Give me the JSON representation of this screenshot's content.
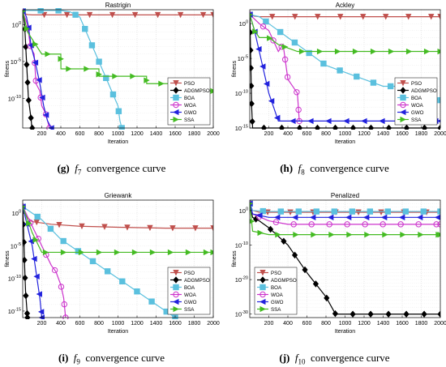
{
  "captions": [
    {
      "label": "(g)",
      "func": "f",
      "sub": "7",
      "text": "convergence curve"
    },
    {
      "label": "(h)",
      "func": "f",
      "sub": "8",
      "text": "convergence curve"
    },
    {
      "label": "(i)",
      "func": "f",
      "sub": "9",
      "text": "convergence curve"
    },
    {
      "label": "(j)",
      "func": "f",
      "sub": "10",
      "text": "convergence curve"
    }
  ],
  "colors": {
    "PSO": "#c0504d",
    "ADGMPSO": "#000000",
    "BOA": "#5bc0de",
    "WOA": "#cc33cc",
    "GWO": "#2222dd",
    "SSA": "#44bb22"
  },
  "chart_data": [
    {
      "type": "line",
      "title": "Rastrigin",
      "xlabel": "Iteration",
      "ylabel": "fitness",
      "yscale": "log",
      "xlim": [
        0,
        2000
      ],
      "ylim": [
        1e-14,
        100
      ],
      "xticks": [
        200,
        400,
        600,
        800,
        1000,
        1200,
        1400,
        1600,
        1800,
        2000
      ],
      "yticks": [
        {
          "v": 1,
          "label": "10^0"
        },
        {
          "v": 1e-05,
          "label": "10^-5"
        },
        {
          "v": 1e-10,
          "label": "10^-10"
        }
      ],
      "grid": true,
      "legend": "bottom-right",
      "series": [
        {
          "name": "PSO",
          "marker": "triangle-down",
          "x": [
            1,
            20,
            50,
            100,
            2000
          ],
          "y": [
            60,
            30,
            22,
            20,
            20
          ]
        },
        {
          "name": "ADGMPSO",
          "marker": "diamond",
          "x": [
            1,
            20,
            40,
            60,
            80,
            90,
            95,
            100
          ],
          "y": [
            60,
            1,
            1e-05,
            1e-10,
            1e-12,
            1e-13,
            1e-14,
            1e-14
          ]
        },
        {
          "name": "BOA",
          "marker": "square",
          "x": [
            1,
            400,
            500,
            600,
            700,
            800,
            900,
            1000,
            1020,
            1040
          ],
          "y": [
            80,
            80,
            50,
            10,
            0.01,
            1e-05,
            1e-08,
            1e-11,
            1e-13,
            1e-14
          ]
        },
        {
          "name": "WOA",
          "marker": "circle",
          "x": [
            1,
            50,
            80,
            120,
            140,
            180,
            200,
            240,
            260,
            280
          ],
          "y": [
            60,
            1,
            0.001,
            0.0001,
            1e-08,
            1e-09,
            1e-11,
            1e-12,
            1e-13,
            1e-14
          ]
        },
        {
          "name": "GWO",
          "marker": "triangle-left",
          "x": [
            1,
            20,
            40,
            60,
            90,
            130,
            180,
            220,
            260,
            300
          ],
          "y": [
            60,
            40,
            10,
            0.5,
            0.001,
            1e-05,
            1e-08,
            1e-11,
            1e-13,
            1e-14
          ]
        },
        {
          "name": "SSA",
          "marker": "triangle-right",
          "x": [
            1,
            50,
            100,
            200,
            400,
            401,
            800,
            801,
            1300,
            1301,
            1750,
            1751,
            2000
          ],
          "y": [
            60,
            0.1,
            0.01,
            0.0001,
            0.0001,
            1e-06,
            1e-06,
            1e-07,
            1e-07,
            1e-08,
            1e-08,
            1e-09,
            1e-09
          ]
        }
      ]
    },
    {
      "type": "line",
      "title": "Ackley",
      "xlabel": "Iteration",
      "ylabel": "fitness",
      "yscale": "log",
      "xlim": [
        0,
        2000
      ],
      "ylim": [
        1e-15,
        100
      ],
      "xticks": [
        200,
        400,
        600,
        800,
        1000,
        1200,
        1400,
        1600,
        1800,
        2000
      ],
      "yticks": [
        {
          "v": 1,
          "label": "10^0"
        },
        {
          "v": 1e-05,
          "label": "10^-5"
        },
        {
          "v": 1e-10,
          "label": "10^-10"
        },
        {
          "v": 1e-15,
          "label": "10^-15"
        }
      ],
      "grid": true,
      "legend": "bottom-right",
      "series": [
        {
          "name": "PSO",
          "marker": "triangle-down",
          "x": [
            1,
            20,
            50,
            100,
            2000
          ],
          "y": [
            20,
            15,
            12,
            10,
            10
          ]
        },
        {
          "name": "ADGMPSO",
          "marker": "diamond",
          "x": [
            1,
            10,
            20,
            30,
            2000
          ],
          "y": [
            20,
            1e-05,
            1e-12,
            1e-15,
            1e-15
          ]
        },
        {
          "name": "BOA",
          "marker": "square",
          "x": [
            1,
            100,
            200,
            400,
            600,
            800,
            1000,
            1200,
            1400,
            1600,
            1800,
            2000
          ],
          "y": [
            20,
            10,
            1,
            0.01,
            0.0001,
            1e-06,
            1e-07,
            1e-08,
            1e-09,
            1e-09,
            1e-10,
            1e-11
          ]
        },
        {
          "name": "WOA",
          "marker": "circle",
          "x": [
            1,
            100,
            200,
            300,
            350,
            400,
            450,
            500,
            520
          ],
          "y": [
            20,
            1,
            0.1,
            0.0001,
            0.001,
            1e-08,
            1e-09,
            1e-10,
            1e-14
          ]
        },
        {
          "name": "GWO",
          "marker": "triangle-left",
          "x": [
            1,
            50,
            100,
            150,
            200,
            250,
            300,
            2000
          ],
          "y": [
            20,
            0.1,
            0.0001,
            1e-07,
            1e-10,
            1e-12,
            1e-14,
            1e-14
          ]
        },
        {
          "name": "SSA",
          "marker": "triangle-right",
          "x": [
            1,
            50,
            100,
            200,
            300,
            500,
            2000
          ],
          "y": [
            20,
            0.1,
            0.01,
            0.01,
            0.001,
            0.0001,
            0.0001
          ]
        }
      ]
    },
    {
      "type": "line",
      "title": "Griewank",
      "xlabel": "Iteration",
      "ylabel": "fitness",
      "yscale": "log",
      "xlim": [
        0,
        2000
      ],
      "ylim": [
        1e-16,
        100
      ],
      "xticks": [
        200,
        400,
        600,
        800,
        1000,
        1200,
        1400,
        1600,
        1800,
        2000
      ],
      "yticks": [
        {
          "v": 1,
          "label": "10^0"
        },
        {
          "v": 1e-05,
          "label": "10^-5"
        },
        {
          "v": 1e-10,
          "label": "10^-10"
        },
        {
          "v": 1e-15,
          "label": "10^-15"
        }
      ],
      "grid": true,
      "legend": "bottom-right",
      "series": [
        {
          "name": "PSO",
          "marker": "triangle-down",
          "x": [
            1,
            50,
            100,
            300,
            600,
            1000,
            1500,
            2000
          ],
          "y": [
            10,
            0.2,
            0.05,
            0.02,
            0.01,
            0.007,
            0.005,
            0.005
          ]
        },
        {
          "name": "ADGMPSO",
          "marker": "diamond",
          "x": [
            1,
            10,
            20,
            30,
            40,
            50
          ],
          "y": [
            10,
            0.001,
            1e-08,
            1e-12,
            1e-14,
            1e-16
          ]
        },
        {
          "name": "BOA",
          "marker": "square",
          "x": [
            1,
            100,
            200,
            400,
            600,
            800,
            1000,
            1200,
            1400,
            1600
          ],
          "y": [
            10,
            1,
            0.1,
            0.0001,
            1e-06,
            1e-08,
            1e-10,
            1e-12,
            1e-14,
            1e-16
          ]
        },
        {
          "name": "WOA",
          "marker": "circle",
          "x": [
            1,
            100,
            200,
            300,
            350,
            400,
            430,
            450
          ],
          "y": [
            10,
            0.01,
            1e-05,
            1e-08,
            1e-09,
            1e-11,
            1e-13,
            1e-16
          ]
        },
        {
          "name": "GWO",
          "marker": "triangle-left",
          "x": [
            1,
            50,
            100,
            150,
            180,
            200
          ],
          "y": [
            10,
            0.01,
            1e-05,
            1e-10,
            1e-13,
            1e-16
          ]
        },
        {
          "name": "SSA",
          "marker": "triangle-right",
          "x": [
            1,
            50,
            100,
            200,
            300,
            2000
          ],
          "y": [
            10,
            0.1,
            0.001,
            1e-06,
            1e-06,
            1e-06
          ]
        }
      ]
    },
    {
      "type": "line",
      "title": "Penalized",
      "xlabel": "Iteration",
      "ylabel": "fitness",
      "yscale": "log",
      "xlim": [
        0,
        2000
      ],
      "ylim": [
        1e-31,
        1000
      ],
      "xticks": [
        200,
        400,
        600,
        800,
        1000,
        1200,
        1400,
        1600,
        1800,
        2000
      ],
      "yticks": [
        {
          "v": 1,
          "label": "10^0"
        },
        {
          "v": 1e-10,
          "label": "10^-10"
        },
        {
          "v": 1e-20,
          "label": "10^-20"
        },
        {
          "v": 1e-30,
          "label": "10^-30"
        }
      ],
      "grid": true,
      "legend": "bottom-left",
      "series": [
        {
          "name": "PSO",
          "marker": "triangle-down",
          "x": [
            1,
            30,
            100,
            2000
          ],
          "y": [
            100,
            1,
            0.3,
            0.3
          ]
        },
        {
          "name": "ADGMPSO",
          "marker": "diamond",
          "x": [
            1,
            30,
            100,
            200,
            400,
            600,
            800,
            900,
            920,
            2000
          ],
          "y": [
            100,
            0.01,
            0.001,
            1e-05,
            1e-10,
            1e-18,
            1e-25,
            1e-30,
            1e-30,
            1e-30
          ]
        },
        {
          "name": "BOA",
          "marker": "square",
          "x": [
            1,
            30,
            200,
            2000
          ],
          "y": [
            100,
            1,
            0.5,
            0.5
          ]
        },
        {
          "name": "WOA",
          "marker": "circle",
          "x": [
            1,
            30,
            200,
            400,
            2000
          ],
          "y": [
            100,
            0.1,
            0.001,
            0.0001,
            0.0001
          ]
        },
        {
          "name": "GWO",
          "marker": "triangle-left",
          "x": [
            1,
            30,
            200,
            2000
          ],
          "y": [
            100,
            0.1,
            0.01,
            0.01
          ]
        },
        {
          "name": "SSA",
          "marker": "triangle-right",
          "x": [
            1,
            30,
            200,
            2000
          ],
          "y": [
            100,
            1e-06,
            1e-07,
            1e-07
          ]
        }
      ]
    }
  ]
}
